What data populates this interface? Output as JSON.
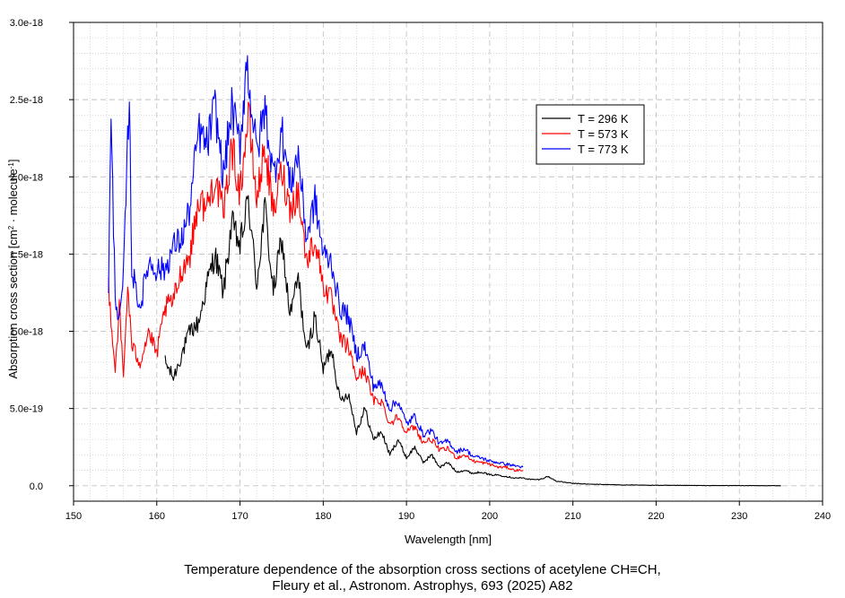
{
  "chart_data": {
    "type": "line",
    "title": "",
    "xlabel": "Wavelength [nm]",
    "ylabel": "Absorption cross section [cm",
    "ylabel_sup1": "2",
    "ylabel_mid": " · molecule",
    "ylabel_sup2": "-1",
    "ylabel_end": "]",
    "xlim": [
      150,
      240
    ],
    "ylim": [
      -1e-19,
      3e-18
    ],
    "x_ticks": [
      150,
      160,
      170,
      180,
      190,
      200,
      210,
      220,
      230,
      240
    ],
    "x_tick_labels": [
      "150",
      "160",
      "170",
      "180",
      "190",
      "200",
      "210",
      "220",
      "230",
      "240"
    ],
    "y_ticks": [
      0,
      5e-19,
      1e-18,
      1.5e-18,
      2e-18,
      2.5e-18,
      3e-18
    ],
    "y_tick_labels": [
      "0.0",
      "5.0e-19",
      "1.0e-18",
      "1.5e-18",
      "2.0e-18",
      "2.5e-18",
      "3.0e-18"
    ],
    "grid": true,
    "legend_position": "top-right",
    "series": [
      {
        "name": "T = 296 K",
        "color": "#000000",
        "x": [
          161,
          162,
          163,
          164,
          165,
          166,
          167,
          168,
          169,
          170,
          171,
          172,
          173,
          174,
          175,
          176,
          177,
          178,
          179,
          180,
          181,
          182,
          183,
          184,
          185,
          186,
          187,
          188,
          189,
          190,
          191,
          192,
          193,
          194,
          195,
          196,
          197,
          198,
          199,
          200,
          201,
          202,
          203,
          204,
          205,
          206,
          207,
          208,
          210,
          212,
          214,
          216,
          218,
          220,
          222,
          224,
          226,
          228,
          230,
          232,
          235
        ],
        "y": [
          8e-19,
          7e-19,
          8.5e-19,
          1e-18,
          1.05e-18,
          1.3e-18,
          1.5e-18,
          1.25e-18,
          1.7e-18,
          1.55e-18,
          1.85e-18,
          1.3e-18,
          1.8e-18,
          1.25e-18,
          1.6e-18,
          1.1e-18,
          1.35e-18,
          8.5e-19,
          1.1e-18,
          7.5e-19,
          9e-19,
          5.5e-19,
          6e-19,
          3.5e-19,
          5e-19,
          3e-19,
          3.5e-19,
          2e-19,
          3e-19,
          1.8e-19,
          2.5e-19,
          1.5e-19,
          2e-19,
          1.2e-19,
          1.5e-19,
          9e-20,
          1e-19,
          8e-20,
          9e-20,
          7e-20,
          7e-20,
          6e-20,
          5e-20,
          5e-20,
          4e-20,
          4e-20,
          6e-20,
          3e-20,
          1.5e-20,
          1e-20,
          8e-21,
          5e-21,
          4e-21,
          3e-21,
          2e-21,
          2e-21,
          1e-21,
          1e-21,
          1e-21,
          5e-22,
          0
        ]
      },
      {
        "name": "T = 573 K",
        "color": "#ff0000",
        "x": [
          154.2,
          155,
          155.5,
          156,
          156.5,
          157,
          158,
          159,
          160,
          161,
          162,
          163,
          164,
          165,
          166,
          167,
          168,
          169,
          170,
          171,
          172,
          173,
          174,
          175,
          176,
          177,
          178,
          179,
          180,
          181,
          182,
          183,
          184,
          185,
          186,
          187,
          188,
          189,
          190,
          191,
          192,
          193,
          194,
          195,
          196,
          197,
          198,
          199,
          200,
          201,
          202,
          203,
          204
        ],
        "y": [
          1.3e-18,
          7.5e-19,
          1.15e-18,
          7e-19,
          1.3e-18,
          9e-19,
          8e-19,
          1e-18,
          8.5e-19,
          1.15e-18,
          1.2e-18,
          1.4e-18,
          1.5e-18,
          1.85e-18,
          1.8e-18,
          2e-18,
          1.75e-18,
          2.2e-18,
          1.9e-18,
          2.4e-18,
          1.85e-18,
          2.2e-18,
          1.75e-18,
          2.05e-18,
          1.8e-18,
          1.9e-18,
          1.45e-18,
          1.6e-18,
          1.3e-18,
          1.2e-18,
          9.5e-19,
          9e-19,
          7e-19,
          7.5e-19,
          5.5e-19,
          5.5e-19,
          4e-19,
          4.5e-19,
          3.5e-19,
          3.8e-19,
          2.8e-19,
          3e-19,
          2.3e-19,
          2.4e-19,
          1.8e-19,
          2e-19,
          1.6e-19,
          1.5e-19,
          1.4e-19,
          1.2e-19,
          1.2e-19,
          1e-19,
          1e-19
        ]
      },
      {
        "name": "T = 773 K",
        "color": "#0000ff",
        "x": [
          154.2,
          154.5,
          155,
          155.5,
          156,
          156.7,
          157,
          158,
          159,
          160,
          161,
          162,
          163,
          164,
          165,
          166,
          167,
          168,
          169,
          170,
          170.8,
          172,
          173,
          174,
          175,
          176,
          177,
          178,
          179,
          180,
          181,
          182,
          183,
          184,
          185,
          186,
          187,
          188,
          189,
          190,
          191,
          192,
          193,
          194,
          195,
          196,
          197,
          198,
          199,
          200,
          201,
          202,
          203,
          204
        ],
        "y": [
          1.3e-18,
          2.35e-18,
          1.25e-18,
          1.05e-18,
          1.35e-18,
          2.55e-18,
          1.4e-18,
          1.15e-18,
          1.45e-18,
          1.4e-18,
          1.4e-18,
          1.55e-18,
          1.6e-18,
          1.8e-18,
          2.3e-18,
          2.2e-18,
          2.45e-18,
          2e-18,
          2.45e-18,
          2.2e-18,
          2.75e-18,
          2.15e-18,
          2.45e-18,
          2e-18,
          2.3e-18,
          1.95e-18,
          2.15e-18,
          1.6e-18,
          1.85e-18,
          1.5e-18,
          1.45e-18,
          1.15e-18,
          1.1e-18,
          8.5e-19,
          9e-19,
          6.5e-19,
          6.5e-19,
          5e-19,
          5.5e-19,
          4e-19,
          4.5e-19,
          3.3e-19,
          3.6e-19,
          2.7e-19,
          2.9e-19,
          2.2e-19,
          2.4e-19,
          1.9e-19,
          1.8e-19,
          1.6e-19,
          1.5e-19,
          1.4e-19,
          1.3e-19,
          1.2e-19
        ]
      }
    ]
  },
  "caption": {
    "line1": "Temperature dependence of the absorption cross sections of acetylene CH≡CH,",
    "line2": "Fleury et al., Astronom. Astrophys, 693 (2025) A82"
  }
}
